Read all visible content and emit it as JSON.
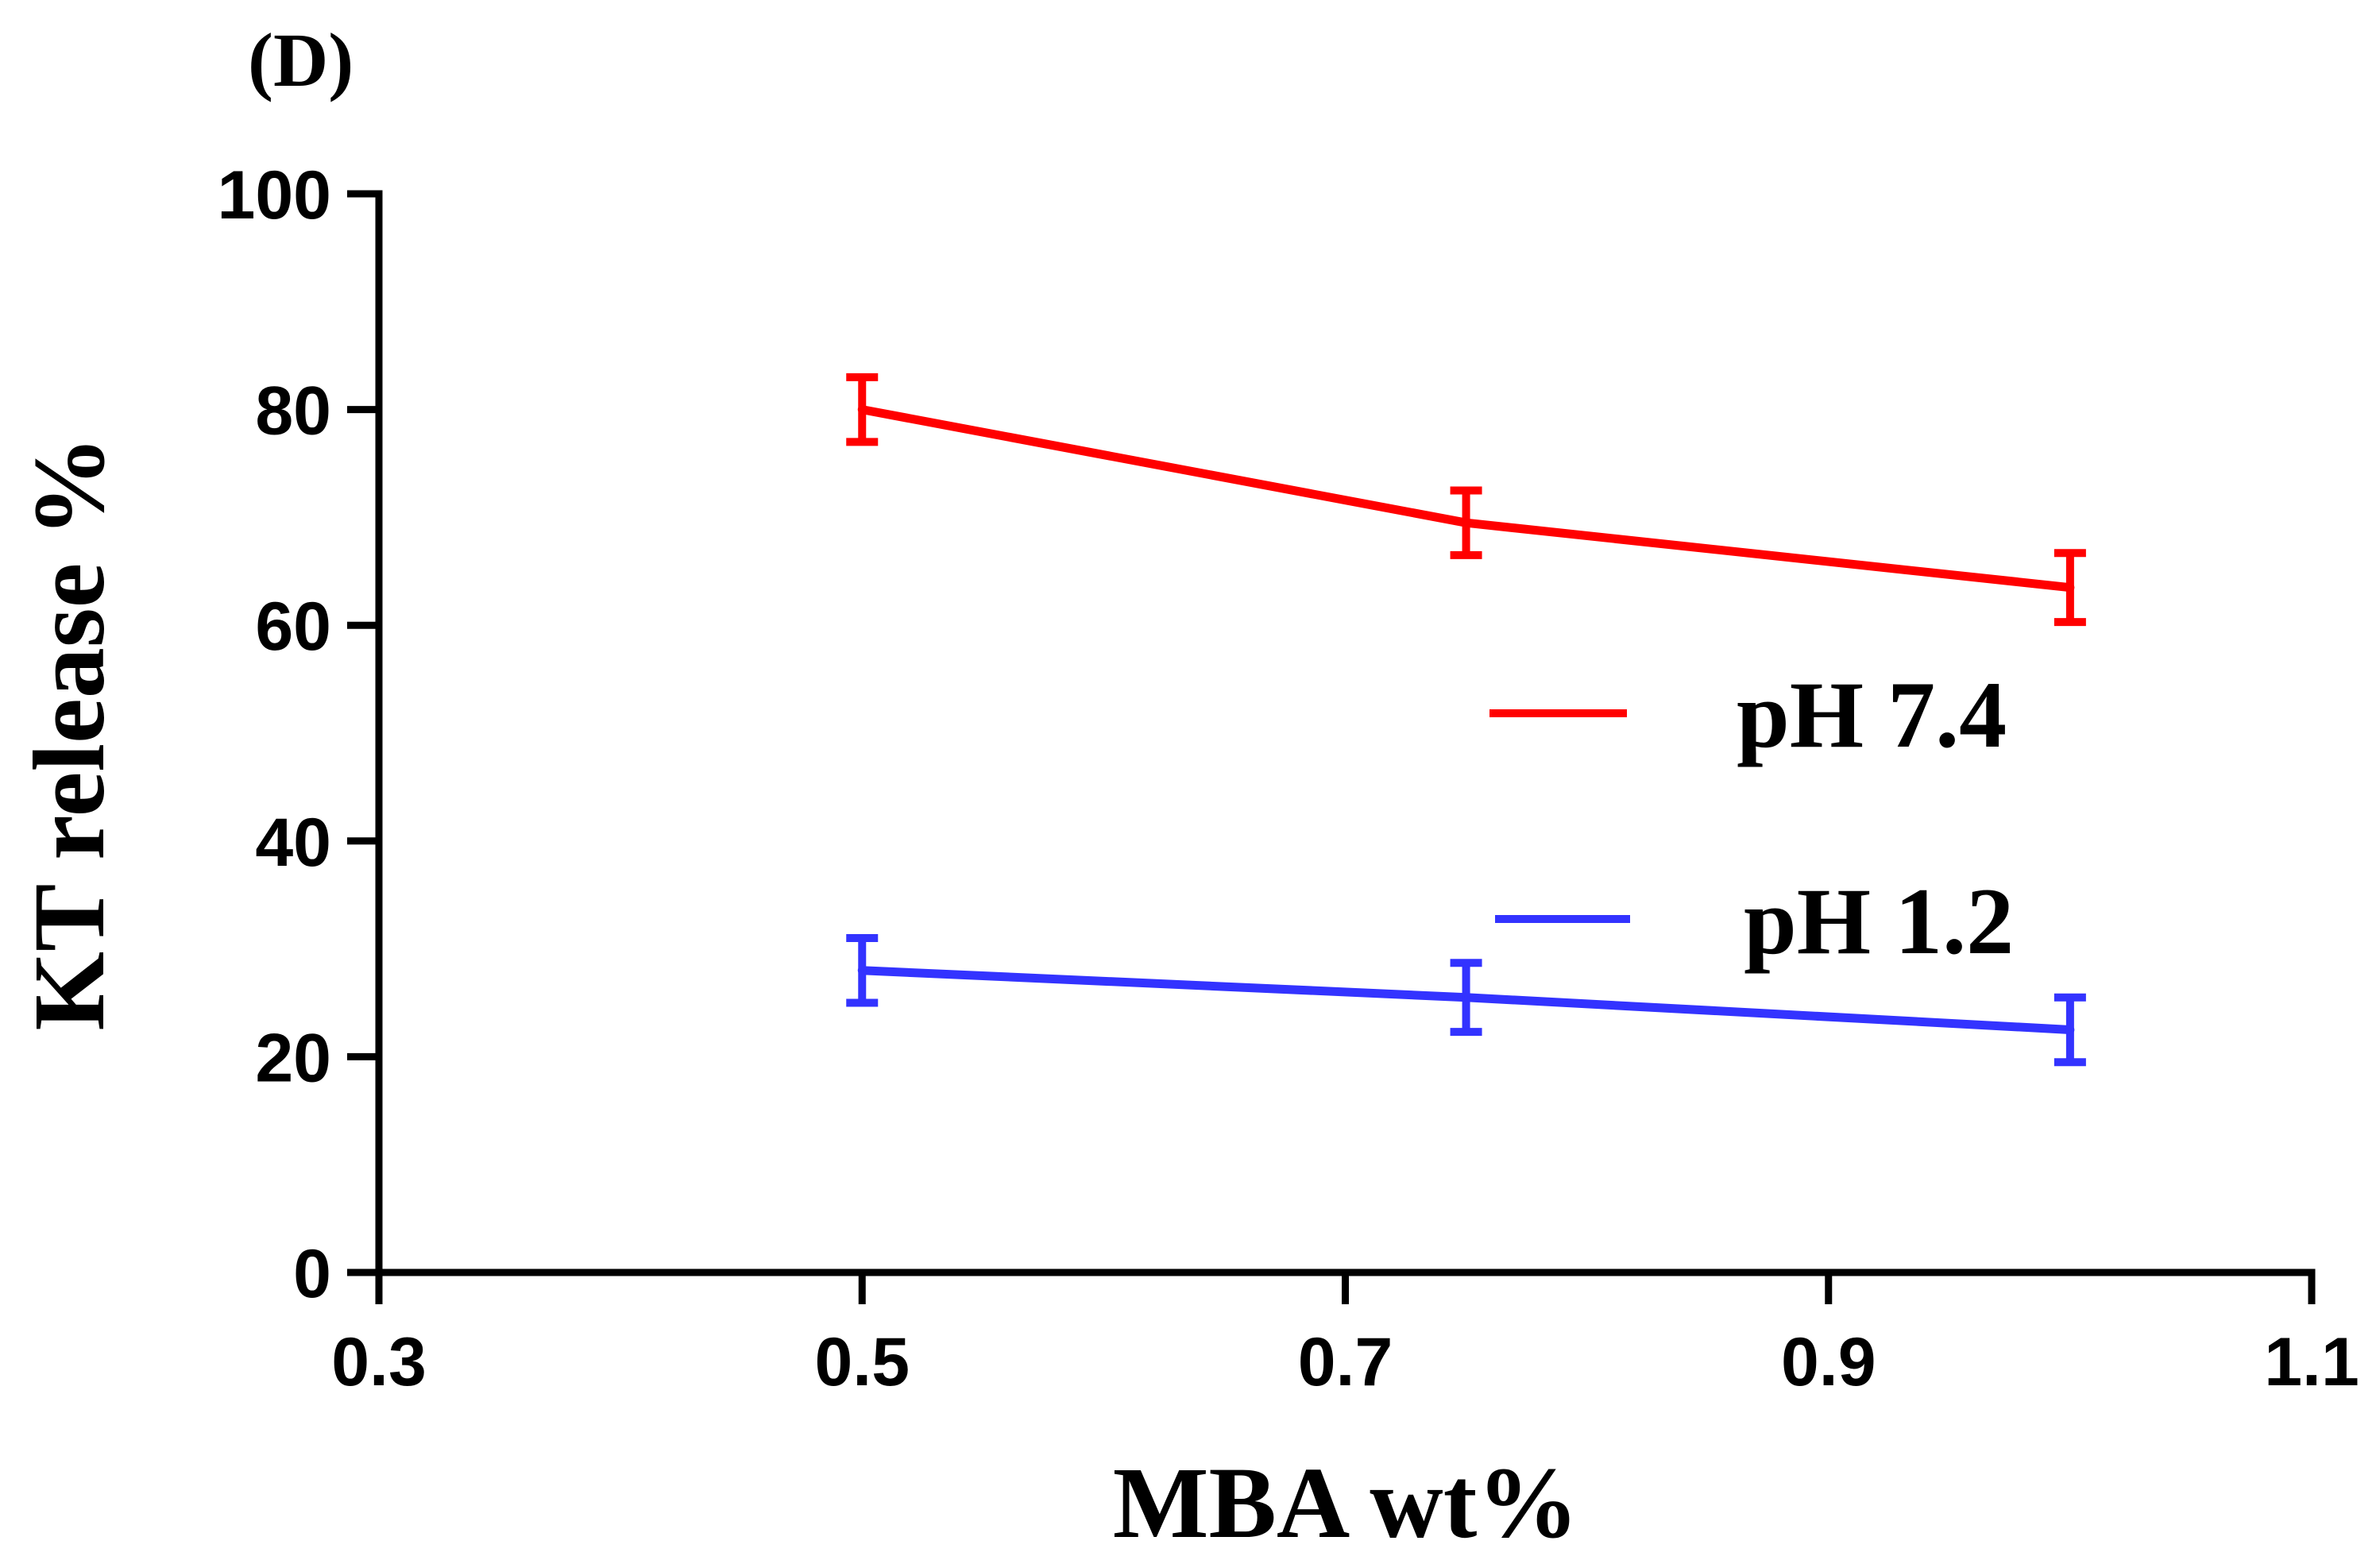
{
  "chart_data": {
    "type": "line",
    "panel_label": "(D)",
    "title": "",
    "xlabel": "MBA wt%",
    "ylabel": "KT release %",
    "xlim": [
      0.3,
      1.1
    ],
    "ylim": [
      0,
      100
    ],
    "xticks": [
      "0.3",
      "0.5",
      "0.7",
      "0.9",
      "1.1"
    ],
    "xtick_values": [
      0.3,
      0.5,
      0.7,
      0.9,
      1.1
    ],
    "yticks": [
      "0",
      "20",
      "40",
      "60",
      "80",
      "100"
    ],
    "ytick_values": [
      0,
      20,
      40,
      60,
      80,
      100
    ],
    "grid": false,
    "legend_position": "right-center",
    "series": [
      {
        "name": "pH 7.4",
        "color": "#ff0000",
        "x": [
          0.5,
          0.75,
          1.0
        ],
        "values": [
          80,
          69.5,
          63.5
        ],
        "errors": [
          3,
          3,
          3.2
        ]
      },
      {
        "name": "pH 1.2",
        "color": "#3333ff",
        "x": [
          0.5,
          0.75,
          1.0
        ],
        "values": [
          28,
          25.5,
          22.5
        ],
        "errors": [
          3,
          3.2,
          3
        ]
      }
    ]
  }
}
